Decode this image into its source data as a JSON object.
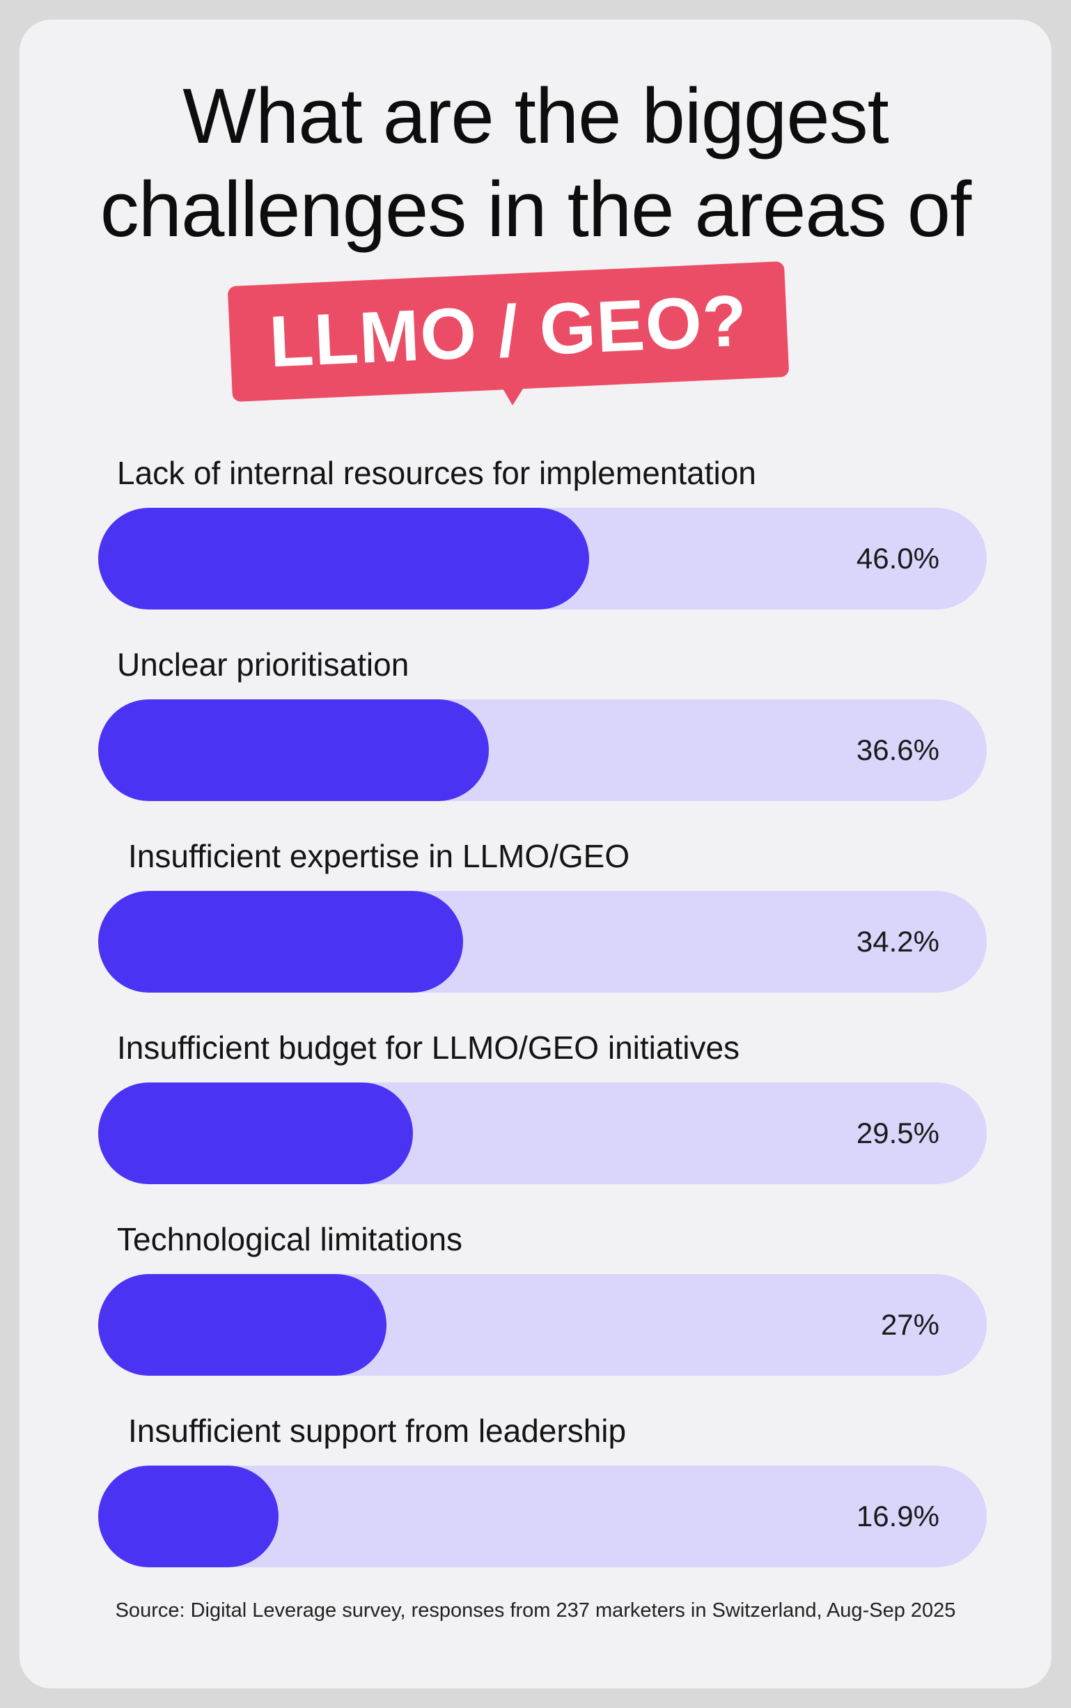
{
  "title": {
    "line1": "What are the biggest",
    "line2": "challenges in the areas of",
    "highlight": "LLMO / GEO?"
  },
  "chart_data": {
    "type": "bar",
    "orientation": "horizontal",
    "categories": [
      "Lack of internal resources for implementation",
      "Unclear prioritisation",
      "Insufficient expertise in LLMO/GEO",
      "Insufficient budget for LLMO/GEO initiatives",
      "Technological limitations",
      "Insufficient support from leadership"
    ],
    "values": [
      46.0,
      36.6,
      34.2,
      29.5,
      27,
      16.9
    ],
    "value_labels": [
      "46.0%",
      "36.6%",
      "34.2%",
      "29.5%",
      "27%",
      "16.9%"
    ],
    "xlim": [
      0,
      100
    ],
    "grid": false,
    "colors": {
      "bar": "#4a33f2",
      "track": "#d9d5fb",
      "highlight": "#ec4d66"
    }
  },
  "source": "Source: Digital Leverage survey, responses from 237 marketers in Switzerland, Aug-Sep 2025"
}
